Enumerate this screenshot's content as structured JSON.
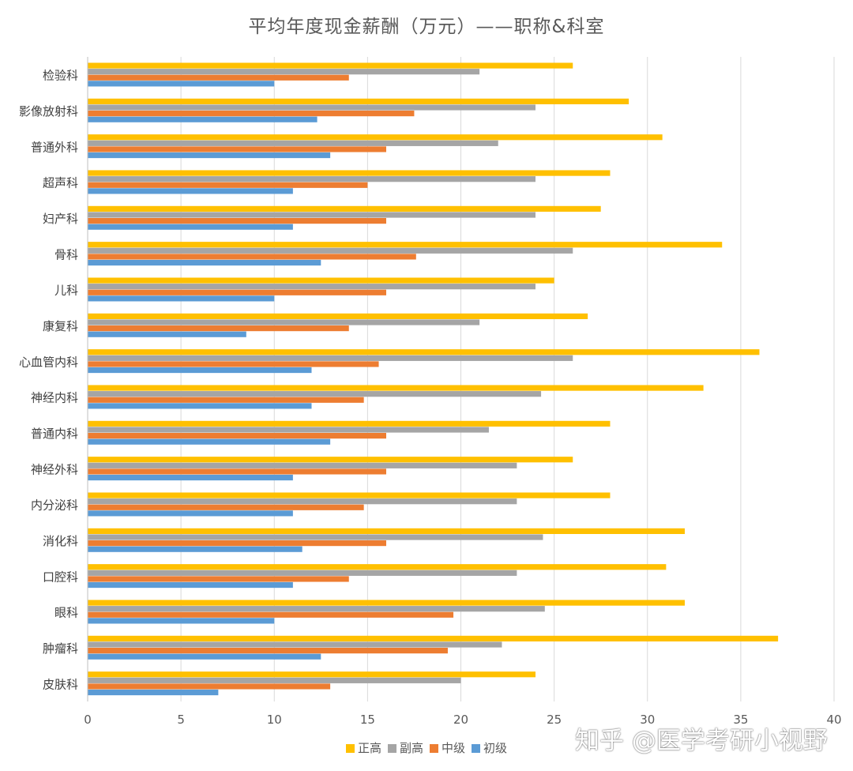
{
  "chart_data": {
    "type": "bar",
    "orientation": "horizontal",
    "title": "平均年度现金薪酬（万元）——职称&科室",
    "categories": [
      "检验科",
      "影像放射科",
      "普通外科",
      "超声科",
      "妇产科",
      "骨科",
      "儿科",
      "康复科",
      "心血管内科",
      "神经内科",
      "普通内科",
      "神经外科",
      "内分泌科",
      "消化科",
      "口腔科",
      "眼科",
      "肿瘤科",
      "皮肤科"
    ],
    "series": [
      {
        "name": "正高",
        "color": "#FFC000",
        "values": [
          26,
          29,
          30.8,
          28,
          27.5,
          34,
          25,
          26.8,
          36,
          33,
          28,
          26,
          28,
          32,
          31,
          32,
          37,
          24
        ]
      },
      {
        "name": "副高",
        "color": "#A5A5A5",
        "values": [
          21,
          24,
          22,
          24,
          24,
          26,
          24,
          21,
          26,
          24.3,
          21.5,
          23,
          23,
          24.4,
          23,
          24.5,
          22.2,
          20
        ]
      },
      {
        "name": "中级",
        "color": "#ED7D31",
        "values": [
          14,
          17.5,
          16,
          15,
          16,
          17.6,
          16,
          14,
          15.6,
          14.8,
          16,
          16,
          14.8,
          16,
          14,
          19.6,
          19.3,
          13
        ]
      },
      {
        "name": "初级",
        "color": "#5B9BD5",
        "values": [
          10,
          12.3,
          13,
          11,
          11,
          12.5,
          10,
          8.5,
          12,
          12,
          13,
          11,
          11,
          11.5,
          11,
          10,
          12.5,
          7
        ]
      }
    ],
    "x_ticks": [
      "0",
      "5",
      "10",
      "15",
      "20",
      "25",
      "30",
      "35",
      "40"
    ],
    "xlim": [
      0,
      40
    ],
    "grid": "vertical",
    "legend": "bottom"
  },
  "watermark": "知乎 @医学考研小视野"
}
